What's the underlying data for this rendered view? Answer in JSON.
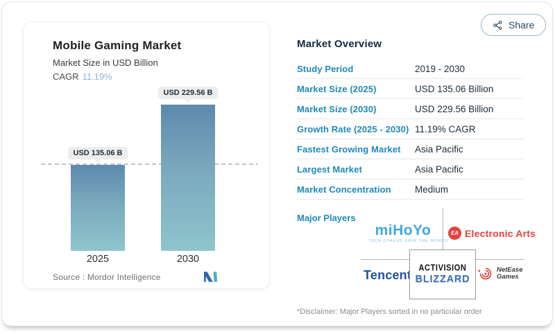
{
  "share": {
    "label": "Share"
  },
  "chart_data": {
    "type": "bar",
    "title": "Mobile Gaming Market",
    "subtitle": "Market Size in USD Billion",
    "cagr_label": "CAGR",
    "cagr_value": "11.19%",
    "categories": [
      "2025",
      "2030"
    ],
    "values": [
      135.06,
      229.56
    ],
    "value_labels": [
      "USD 135.06 B",
      "USD 229.56 B"
    ],
    "ylabel": "USD Billion",
    "ylim": [
      0,
      240
    ],
    "reference_line": 135.06,
    "grid": "off",
    "bar_gradient_top": "#5d8aad",
    "bar_gradient_bottom": "#8ec5cd",
    "source": "Source :  Mordor Intelligence"
  },
  "overview": {
    "title": "Market Overview",
    "rows": [
      {
        "label": "Study Period",
        "value": "2019 - 2030"
      },
      {
        "label": "Market Size (2025)",
        "value": "USD 135.06 Billion"
      },
      {
        "label": "Market Size (2030)",
        "value": "USD 229.56 Billion"
      },
      {
        "label": "Growth Rate (2025 - 2030)",
        "value": "11.19% CAGR"
      },
      {
        "label": "Fastest Growing Market",
        "value": "Asia Pacific"
      },
      {
        "label": "Largest Market",
        "value": "Asia Pacific"
      },
      {
        "label": "Market Concentration",
        "value": "Medium"
      }
    ],
    "major_players_label": "Major Players",
    "disclaimer": "*Disclaimer: Major Players sorted in no particular order"
  },
  "players": {
    "mihoyo_word": "miHoYo",
    "mihoyo_tagline": "TECH OTAKUS SAVE THE WORLD",
    "ea_monogram": "EA",
    "ea_text": "Electronic Arts",
    "tencent": "Tencent",
    "activision": "ACTIVISION",
    "blizzard": "BLIZZARD",
    "netease_line1": "NetEase",
    "netease_line2": "Games"
  },
  "colors": {
    "label_blue": "#2089b8",
    "value_dark": "#1d2c3b",
    "cagr_blue": "#93b4cf",
    "ea_red": "#e8403d",
    "tencent_blue": "#1e51a5",
    "blizzard_blue": "#3a73b8",
    "netease_red": "#d6342a",
    "mihoyo_blue": "#41a8e0",
    "mordor_blue": "#2f63ad",
    "mordor_teal": "#4aafbb"
  }
}
